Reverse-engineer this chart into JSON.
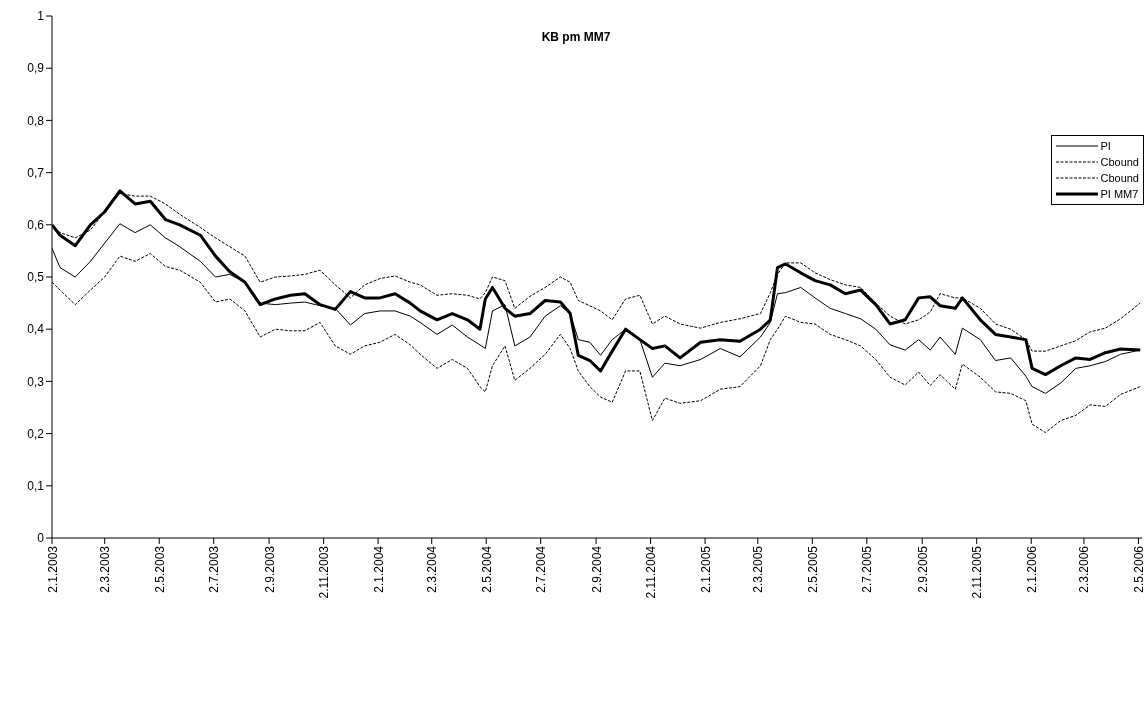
{
  "chart_data": {
    "type": "line",
    "title": "KB pm MM7",
    "x": [
      "2003-01-02",
      "2003-01-11",
      "2003-01-28",
      "2003-02-14",
      "2003-03-02",
      "2003-03-19",
      "2003-04-05",
      "2003-04-22",
      "2003-05-09",
      "2003-05-25",
      "2003-06-17",
      "2003-07-04",
      "2003-07-20",
      "2003-08-06",
      "2003-08-23",
      "2003-09-09",
      "2003-09-26",
      "2003-10-12",
      "2003-10-29",
      "2003-11-15",
      "2003-12-02",
      "2003-12-18",
      "2004-01-04",
      "2004-01-21",
      "2004-02-07",
      "2004-02-18",
      "2004-03-08",
      "2004-03-25",
      "2004-04-11",
      "2004-04-25",
      "2004-05-01",
      "2004-05-09",
      "2004-05-23",
      "2004-06-03",
      "2004-06-20",
      "2004-07-07",
      "2004-07-24",
      "2004-08-04",
      "2004-08-13",
      "2004-08-26",
      "2004-09-07",
      "2004-09-20",
      "2004-10-05",
      "2004-10-21",
      "2004-11-04",
      "2004-11-18",
      "2004-12-05",
      "2004-12-28",
      "2005-01-19",
      "2005-02-10",
      "2005-03-05",
      "2005-03-16",
      "2005-03-24",
      "2005-04-02",
      "2005-04-19",
      "2005-05-05",
      "2005-05-22",
      "2005-06-08",
      "2005-06-25",
      "2005-07-12",
      "2005-07-28",
      "2005-08-14",
      "2005-08-29",
      "2005-09-11",
      "2005-09-22",
      "2005-10-09",
      "2005-10-17",
      "2005-11-06",
      "2005-11-23",
      "2005-12-10",
      "2005-12-27",
      "2006-01-03",
      "2006-01-18",
      "2006-02-04",
      "2006-02-21",
      "2006-03-09",
      "2006-03-26",
      "2006-04-12",
      "2006-05-04"
    ],
    "series": [
      {
        "name": "PI",
        "color": "#000000",
        "line_style": "solid",
        "values": [
          0.555,
          0.518,
          0.5,
          0.53,
          0.565,
          0.602,
          0.585,
          0.6,
          0.575,
          0.558,
          0.53,
          0.5,
          0.505,
          0.49,
          0.45,
          0.447,
          0.45,
          0.452,
          0.445,
          0.44,
          0.408,
          0.43,
          0.435,
          0.435,
          0.425,
          0.413,
          0.39,
          0.408,
          0.385,
          0.37,
          0.363,
          0.435,
          0.447,
          0.368,
          0.385,
          0.425,
          0.445,
          0.43,
          0.38,
          0.375,
          0.35,
          0.38,
          0.4,
          0.38,
          0.308,
          0.335,
          0.33,
          0.342,
          0.363,
          0.347,
          0.385,
          0.413,
          0.468,
          0.47,
          0.48,
          0.46,
          0.44,
          0.43,
          0.42,
          0.4,
          0.37,
          0.36,
          0.38,
          0.36,
          0.385,
          0.352,
          0.402,
          0.38,
          0.34,
          0.345,
          0.31,
          0.29,
          0.277,
          0.297,
          0.325,
          0.33,
          0.338,
          0.352,
          0.36
        ]
      },
      {
        "name": "Cbound",
        "color": "#000000",
        "line_style": "dashed",
        "values": [
          0.6,
          0.585,
          0.575,
          0.59,
          0.625,
          0.66,
          0.655,
          0.655,
          0.64,
          0.62,
          0.595,
          0.575,
          0.558,
          0.54,
          0.49,
          0.5,
          0.502,
          0.505,
          0.513,
          0.485,
          0.46,
          0.485,
          0.497,
          0.502,
          0.49,
          0.485,
          0.465,
          0.468,
          0.465,
          0.458,
          0.47,
          0.5,
          0.493,
          0.44,
          0.463,
          0.48,
          0.5,
          0.49,
          0.455,
          0.445,
          0.435,
          0.418,
          0.458,
          0.465,
          0.41,
          0.425,
          0.41,
          0.402,
          0.413,
          0.42,
          0.43,
          0.47,
          0.505,
          0.527,
          0.527,
          0.508,
          0.495,
          0.485,
          0.48,
          0.45,
          0.425,
          0.41,
          0.418,
          0.433,
          0.468,
          0.46,
          0.46,
          0.44,
          0.41,
          0.4,
          0.38,
          0.358,
          0.358,
          0.368,
          0.378,
          0.395,
          0.402,
          0.42,
          0.45
        ]
      },
      {
        "name": "Cbound",
        "color": "#000000",
        "line_style": "dashed",
        "values": [
          0.49,
          0.475,
          0.447,
          0.475,
          0.5,
          0.54,
          0.53,
          0.545,
          0.52,
          0.513,
          0.49,
          0.452,
          0.458,
          0.435,
          0.385,
          0.4,
          0.397,
          0.397,
          0.413,
          0.368,
          0.352,
          0.368,
          0.375,
          0.39,
          0.37,
          0.352,
          0.325,
          0.342,
          0.325,
          0.29,
          0.28,
          0.33,
          0.368,
          0.302,
          0.325,
          0.352,
          0.39,
          0.363,
          0.32,
          0.29,
          0.27,
          0.26,
          0.32,
          0.32,
          0.225,
          0.268,
          0.258,
          0.263,
          0.285,
          0.29,
          0.33,
          0.38,
          0.4,
          0.425,
          0.413,
          0.41,
          0.39,
          0.38,
          0.368,
          0.342,
          0.308,
          0.293,
          0.318,
          0.292,
          0.313,
          0.285,
          0.333,
          0.308,
          0.28,
          0.277,
          0.263,
          0.218,
          0.202,
          0.225,
          0.235,
          0.255,
          0.252,
          0.275,
          0.29
        ]
      },
      {
        "name": "PI MM7",
        "color": "#000000",
        "line_style": "solid",
        "values": [
          0.6,
          0.58,
          0.56,
          0.6,
          0.625,
          0.665,
          0.64,
          0.645,
          0.61,
          0.6,
          0.58,
          0.54,
          0.51,
          0.49,
          0.447,
          0.458,
          0.465,
          0.468,
          0.447,
          0.438,
          0.472,
          0.46,
          0.46,
          0.468,
          0.45,
          0.435,
          0.418,
          0.43,
          0.418,
          0.4,
          0.458,
          0.48,
          0.44,
          0.425,
          0.43,
          0.455,
          0.452,
          0.43,
          0.35,
          0.34,
          0.32,
          0.358,
          0.4,
          0.38,
          0.363,
          0.368,
          0.345,
          0.375,
          0.38,
          0.377,
          0.4,
          0.418,
          0.518,
          0.525,
          0.508,
          0.493,
          0.485,
          0.468,
          0.475,
          0.447,
          0.41,
          0.418,
          0.46,
          0.462,
          0.445,
          0.44,
          0.46,
          0.418,
          0.39,
          0.385,
          0.38,
          0.325,
          0.313,
          0.33,
          0.345,
          0.342,
          0.355,
          0.362,
          0.36
        ]
      }
    ],
    "xlim": [
      "2003-01-02",
      "2006-05-06"
    ],
    "xticks": [
      {
        "value": "2003-01-02",
        "label": "2.1.2003"
      },
      {
        "value": "2003-03-02",
        "label": "2.3.2003"
      },
      {
        "value": "2003-05-02",
        "label": "2.5.2003"
      },
      {
        "value": "2003-07-02",
        "label": "2.7.2003"
      },
      {
        "value": "2003-09-02",
        "label": "2.9.2003"
      },
      {
        "value": "2003-11-02",
        "label": "2.11.2003"
      },
      {
        "value": "2004-01-02",
        "label": "2.1.2004"
      },
      {
        "value": "2004-03-02",
        "label": "2.3.2004"
      },
      {
        "value": "2004-05-02",
        "label": "2.5.2004"
      },
      {
        "value": "2004-07-02",
        "label": "2.7.2004"
      },
      {
        "value": "2004-09-02",
        "label": "2.9.2004"
      },
      {
        "value": "2004-11-02",
        "label": "2.11.2004"
      },
      {
        "value": "2005-01-02",
        "label": "2.1.2005"
      },
      {
        "value": "2005-03-02",
        "label": "2.3.2005"
      },
      {
        "value": "2005-05-02",
        "label": "2.5.2005"
      },
      {
        "value": "2005-07-02",
        "label": "2.7.2005"
      },
      {
        "value": "2005-09-02",
        "label": "2.9.2005"
      },
      {
        "value": "2005-11-02",
        "label": "2.11.2005"
      },
      {
        "value": "2006-01-02",
        "label": "2.1.2006"
      },
      {
        "value": "2006-03-02",
        "label": "2.3.2006"
      },
      {
        "value": "2006-05-02",
        "label": "2.5.2006"
      }
    ],
    "ylim": [
      0,
      1
    ],
    "yticks": [
      0,
      {
        "value": 0.1,
        "label": "0,1"
      },
      {
        "value": 0.2,
        "label": "0,2"
      },
      {
        "value": 0.3,
        "label": "0,3"
      },
      {
        "value": 0.4,
        "label": "0,4"
      },
      {
        "value": 0.5,
        "label": "0,5"
      },
      {
        "value": 0.6,
        "label": "0,6"
      },
      {
        "value": 0.7,
        "label": "0,7"
      },
      {
        "value": 0.8,
        "label": "0,8"
      },
      {
        "value": 0.9,
        "label": "0,9"
      },
      1
    ],
    "grid": false,
    "legend": "right",
    "marker": "none"
  }
}
